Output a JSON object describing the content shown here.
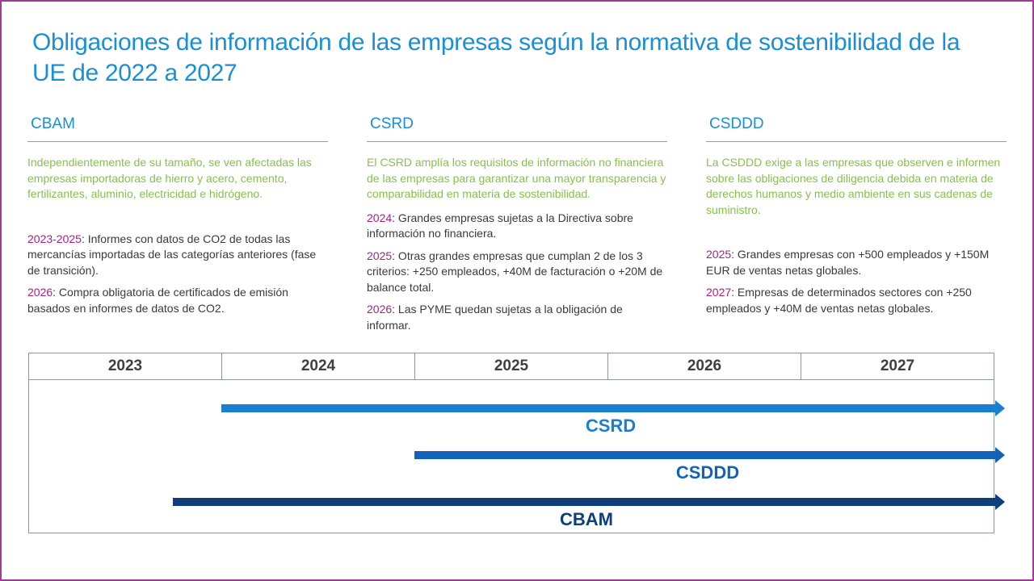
{
  "title": "Obligaciones de información de las empresas según la normativa de sostenibilidad de la UE de 2022 a 2027",
  "columns": {
    "cbam": {
      "heading": "CBAM",
      "intro": "Independientemente de su tamaño, se ven afectadas las empresas importadoras de hierro y acero, cemento, fertilizantes, aluminio, electricidad e hidrógeno.",
      "entries": [
        {
          "year": "2023-2025",
          "text": ": Informes con datos de CO2 de todas las mercancías importadas de las categorías anteriores (fase de transición)."
        },
        {
          "year": "2026",
          "text": ": Compra obligatoria de certificados de emisión basados en informes de datos de CO2."
        }
      ]
    },
    "csrd": {
      "heading": "CSRD",
      "intro": "El CSRD amplía los requisitos de información no financiera de las empresas para garantizar una mayor transparencia y comparabilidad en materia de sostenibilidad.",
      "entries": [
        {
          "year": "2024",
          "text": ": Grandes empresas sujetas a la Directiva sobre información no financiera."
        },
        {
          "year": "2025",
          "text": ": Otras grandes empresas que cumplan 2 de los 3 criterios: +250 empleados, +40M de facturación o +20M de balance total."
        },
        {
          "year": "2026",
          "text": ": Las PYME quedan sujetas a la obligación de informar."
        }
      ]
    },
    "csddd": {
      "heading": "CSDDD",
      "intro": "La CSDDD exige a las empresas que observen e informen sobre las obligaciones de diligencia debida en materia de derechos humanos y medio ambiente en sus cadenas de suministro.",
      "entries": [
        {
          "year": "2025",
          "text": ": Grandes empresas con +500 empleados y +150M EUR de ventas netas globales."
        },
        {
          "year": "2027",
          "text": ": Empresas de determinados sectores con +250 empleados y +40M de ventas netas globales."
        }
      ]
    }
  },
  "timeline": {
    "years": [
      "2023",
      "2024",
      "2025",
      "2026",
      "2027"
    ],
    "bars": [
      {
        "label": "CSRD",
        "start_year": 2024,
        "color": "#1a7fd0"
      },
      {
        "label": "CSDDD",
        "start_year": 2025,
        "color": "#1462b8"
      },
      {
        "label": "CBAM",
        "start_year": 2023.75,
        "color": "#0e3f7a"
      }
    ]
  },
  "colors": {
    "title": "#1a8fd6",
    "intro": "#86c24a",
    "year_highlight": "#a8227f",
    "frame": "#a03c8f"
  }
}
